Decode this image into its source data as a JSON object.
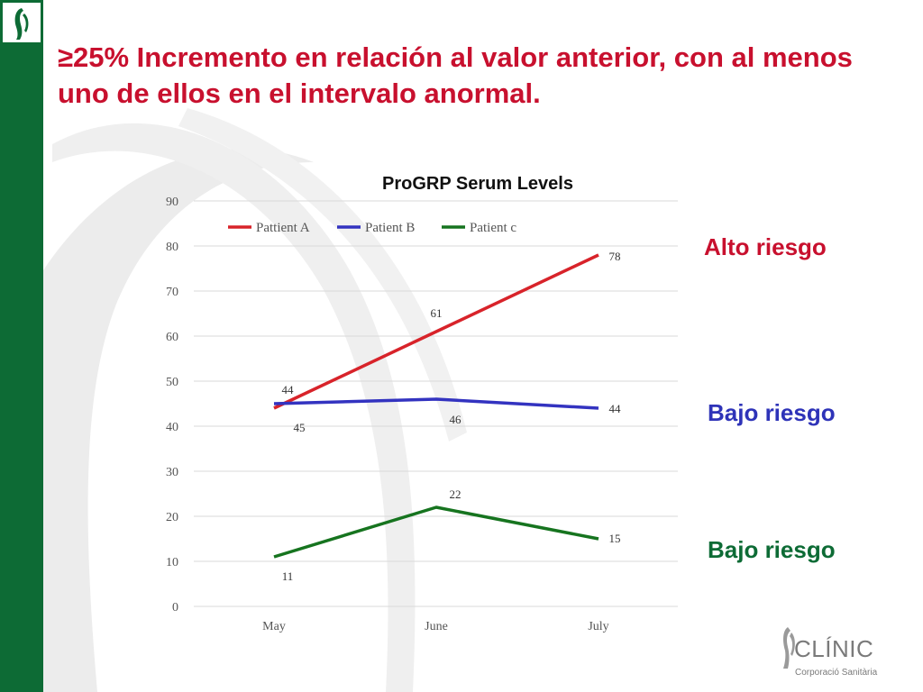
{
  "slide": {
    "title": "≥25% Incremento en relación al valor anterior, con al menos uno de ellos en el intervalo anormal.",
    "annotations": [
      {
        "text": "Alto riesgo",
        "color": "#c8102e"
      },
      {
        "text": "Bajo riesgo",
        "color": "#2e33b8"
      },
      {
        "text": "Bajo riesgo",
        "color": "#0d6b35"
      }
    ],
    "logo": {
      "name": "CLÍNIC",
      "subtitle": "Corporació Sanitària"
    },
    "brand_color": "#0d6b35"
  },
  "chart_data": {
    "type": "line",
    "title": "ProGRP Serum Levels",
    "categories": [
      "May",
      "June",
      "July"
    ],
    "ylim": [
      0,
      90
    ],
    "yticks": [
      0,
      10,
      20,
      30,
      40,
      50,
      60,
      70,
      80,
      90
    ],
    "grid": true,
    "legend_position": "top",
    "series": [
      {
        "name": "Pattient A",
        "values": [
          44,
          61,
          78
        ],
        "color": "#d8232a"
      },
      {
        "name": "Patient B",
        "values": [
          45,
          46,
          44
        ],
        "color": "#3333c0"
      },
      {
        "name": "Patient c",
        "values": [
          11,
          22,
          15
        ],
        "color": "#16741f"
      }
    ]
  }
}
